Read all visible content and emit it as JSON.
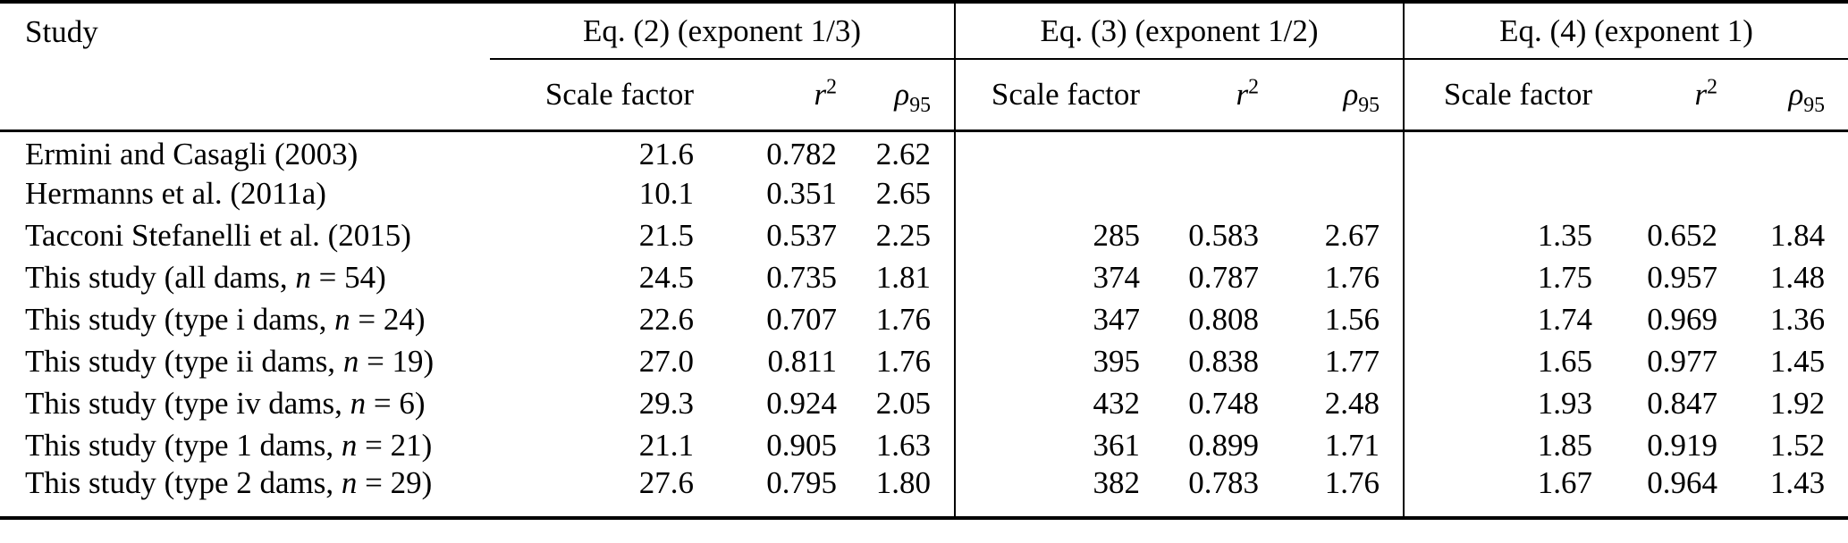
{
  "table": {
    "study_header": "Study",
    "groups": [
      {
        "title": "Eq. (2) (exponent 1/3)"
      },
      {
        "title": "Eq. (3) (exponent 1/2)"
      },
      {
        "title": "Eq. (4) (exponent 1)"
      }
    ],
    "subheaders": {
      "scale_factor": "Scale factor",
      "r_base": "r",
      "r_sup": "2",
      "rho_base": "ρ",
      "rho_sub": "95"
    },
    "rows": [
      {
        "study_prefix": "Ermini and Casagli (2003)",
        "study_var": "",
        "study_rest": "",
        "g1": [
          "21.6",
          "0.782",
          "2.62"
        ],
        "g2": [
          "",
          "",
          ""
        ],
        "g3": [
          "",
          "",
          ""
        ]
      },
      {
        "study_prefix": "Hermanns et al. (2011a)",
        "study_var": "",
        "study_rest": "",
        "g1": [
          "10.1",
          "0.351",
          "2.65"
        ],
        "g2": [
          "",
          "",
          ""
        ],
        "g3": [
          "",
          "",
          ""
        ]
      },
      {
        "study_prefix": "Tacconi Stefanelli et al. (2015)",
        "study_var": "",
        "study_rest": "",
        "g1": [
          "21.5",
          "0.537",
          "2.25"
        ],
        "g2": [
          "285",
          "0.583",
          "2.67"
        ],
        "g3": [
          "1.35",
          "0.652",
          "1.84"
        ]
      },
      {
        "study_prefix": "This study (all dams, ",
        "study_var": "n",
        "study_rest": " = 54)",
        "g1": [
          "24.5",
          "0.735",
          "1.81"
        ],
        "g2": [
          "374",
          "0.787",
          "1.76"
        ],
        "g3": [
          "1.75",
          "0.957",
          "1.48"
        ]
      },
      {
        "study_prefix": "This study (type i dams, ",
        "study_var": "n",
        "study_rest": " = 24)",
        "g1": [
          "22.6",
          "0.707",
          "1.76"
        ],
        "g2": [
          "347",
          "0.808",
          "1.56"
        ],
        "g3": [
          "1.74",
          "0.969",
          "1.36"
        ]
      },
      {
        "study_prefix": "This study (type ii dams, ",
        "study_var": "n",
        "study_rest": " = 19)",
        "g1": [
          "27.0",
          "0.811",
          "1.76"
        ],
        "g2": [
          "395",
          "0.838",
          "1.77"
        ],
        "g3": [
          "1.65",
          "0.977",
          "1.45"
        ]
      },
      {
        "study_prefix": "This study (type iv dams, ",
        "study_var": "n",
        "study_rest": " = 6)",
        "g1": [
          "29.3",
          "0.924",
          "2.05"
        ],
        "g2": [
          "432",
          "0.748",
          "2.48"
        ],
        "g3": [
          "1.93",
          "0.847",
          "1.92"
        ]
      },
      {
        "study_prefix": "This study (type 1 dams, ",
        "study_var": "n",
        "study_rest": " = 21)",
        "g1": [
          "21.1",
          "0.905",
          "1.63"
        ],
        "g2": [
          "361",
          "0.899",
          "1.71"
        ],
        "g3": [
          "1.85",
          "0.919",
          "1.52"
        ]
      },
      {
        "study_prefix": "This study (type 2 dams, ",
        "study_var": "n",
        "study_rest": " = 29)",
        "g1": [
          "27.6",
          "0.795",
          "1.80"
        ],
        "g2": [
          "382",
          "0.783",
          "1.76"
        ],
        "g3": [
          "1.67",
          "0.964",
          "1.43"
        ]
      }
    ]
  }
}
